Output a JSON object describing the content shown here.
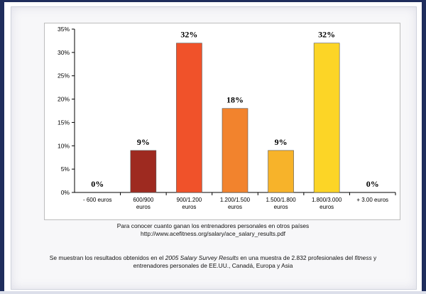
{
  "chart_data": {
    "type": "bar",
    "categories": [
      [
        "- 600 euros"
      ],
      [
        "600/900",
        "euros"
      ],
      [
        "900/1.200",
        "euros"
      ],
      [
        "1.200/1.500",
        "euros"
      ],
      [
        "1.500/1.800",
        "euros"
      ],
      [
        "1.800/3.000",
        "euros"
      ],
      [
        "+ 3.00 euros"
      ]
    ],
    "values": [
      0,
      9,
      32,
      18,
      9,
      32,
      0
    ],
    "data_labels": [
      "0%",
      "9%",
      "32%",
      "18%",
      "9%",
      "32%",
      "0%"
    ],
    "colors": [
      "#cfcfcf",
      "#9e2a20",
      "#f0522a",
      "#f2832d",
      "#f7b32a",
      "#fcd526",
      "#cfcfcf"
    ],
    "ylim": [
      0,
      35
    ],
    "yticks": [
      0,
      5,
      10,
      15,
      20,
      25,
      30,
      35
    ],
    "ytick_labels": [
      "0%",
      "5%",
      "10%",
      "15%",
      "20%",
      "25%",
      "30%",
      "35%"
    ],
    "title": "",
    "xlabel": "",
    "ylabel": "",
    "grid": false
  },
  "notes": {
    "line1": "Para conocer cuanto ganan los entrenadores personales en otros países",
    "line2": "http://www.acefitness.org/salary/ace_salary_results.pdf",
    "line3_a": "Se muestran los resultados obtenidos en el ",
    "line3_b": "2005 Salary Survey Results",
    "line3_c": " en una muestra de 2.832 profesionales del ",
    "line3_d": "fitness",
    "line3_e": " y",
    "line4": "entrenadores personales de EE.UU., Canadá, Europa y Asia"
  }
}
